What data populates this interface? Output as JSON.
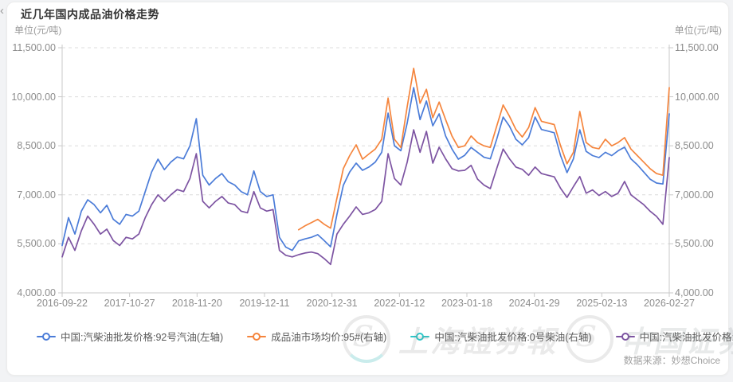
{
  "page": {
    "title": "近几年国内成品油价格走势",
    "unit_left": "单位(元/吨)",
    "unit_right": "单位(元/吨)",
    "data_source": "数据来源：妙想Choice",
    "nav_arrow": "‹"
  },
  "watermark": {
    "brand1": "上海證券報",
    "brand2": "中国证券网"
  },
  "legend": {
    "items": [
      {
        "label": "中国:汽柴油批发价格:92号汽油(左轴)",
        "color": "#4b7cd8"
      },
      {
        "label": "成品油市场均价:95#(右轴)",
        "color": "#f5853d"
      },
      {
        "label": "中国:汽柴油批发价格:0号柴油(右轴)",
        "color": "#2ec7c9"
      },
      {
        "label": "中国:汽柴油批发价格:0号柴油(左轴)",
        "color": "#7d54a2"
      }
    ]
  },
  "chart_data": {
    "type": "line",
    "title": "近几年国内成品油价格走势",
    "unit": "元/吨",
    "grid": "dashed-horizontal",
    "legend_position": "bottom",
    "y_axis": {
      "min": 4000,
      "max": 11500,
      "tick_labels_top_to_bottom": [
        "11,500.00",
        "10,000.00",
        "8,500.00",
        "7,000.00",
        "5,500.00",
        "4,000.00"
      ],
      "sides": [
        "left",
        "right"
      ]
    },
    "x_axis": {
      "tick_labels": [
        "2016-09-22",
        "2017-10-27",
        "2018-11-20",
        "2019-12-11",
        "2020-12-31",
        "2022-01-12",
        "2023-01-18",
        "2024-01-29",
        "2025-02-13",
        "2026-02-27"
      ]
    },
    "series": [
      {
        "name": "中国:汽柴油批发价格:92号汽油(左轴)",
        "axis": "left",
        "color": "#4b7cd8",
        "values": [
          5450,
          6300,
          5800,
          6500,
          6850,
          6700,
          6450,
          6680,
          6250,
          6100,
          6400,
          6350,
          6500,
          7100,
          7700,
          8090,
          7770,
          8000,
          8160,
          8100,
          8500,
          9330,
          7600,
          7300,
          7500,
          7650,
          7400,
          7300,
          7100,
          7000,
          7730,
          7100,
          6950,
          7000,
          5700,
          5400,
          5300,
          5590,
          5650,
          5700,
          5780,
          5600,
          5410,
          6400,
          7290,
          7700,
          7970,
          7750,
          7850,
          8000,
          8300,
          9500,
          8500,
          8350,
          9200,
          10280,
          9300,
          9870,
          9110,
          9480,
          8800,
          8400,
          8090,
          8210,
          8450,
          8300,
          8150,
          8100,
          8700,
          9380,
          9100,
          8700,
          8530,
          8750,
          9380,
          9000,
          8950,
          8900,
          8200,
          7680,
          8100,
          8990,
          8330,
          8200,
          8140,
          8300,
          8200,
          8350,
          8455,
          8100,
          7920,
          7700,
          7480,
          7360,
          7330,
          9480
        ]
      },
      {
        "name": "成品油市场均价:95#(右轴)",
        "axis": "right",
        "color": "#f5853d",
        "values": [
          null,
          null,
          null,
          null,
          null,
          null,
          null,
          null,
          null,
          null,
          null,
          null,
          null,
          null,
          null,
          null,
          null,
          null,
          null,
          null,
          null,
          null,
          null,
          null,
          null,
          null,
          null,
          null,
          null,
          null,
          null,
          null,
          null,
          null,
          null,
          null,
          null,
          5930,
          6050,
          6150,
          6250,
          6100,
          5980,
          6900,
          7800,
          8200,
          8530,
          8090,
          8250,
          8400,
          8700,
          9960,
          8700,
          8450,
          9700,
          10870,
          9800,
          10230,
          9360,
          9840,
          9300,
          8800,
          8450,
          8500,
          8800,
          8600,
          8500,
          8450,
          9100,
          9750,
          9400,
          9000,
          8770,
          9060,
          9670,
          9250,
          9200,
          9150,
          8500,
          7950,
          8300,
          9550,
          8600,
          8450,
          8410,
          8700,
          8500,
          8600,
          8750,
          8400,
          8200,
          8000,
          7800,
          7650,
          7600,
          10280
        ]
      },
      {
        "name": "中国:汽柴油批发价格:0号柴油(右轴)",
        "axis": "right",
        "color": "#2ec7c9",
        "note_visible_in_pixels": "line not visible (covered)",
        "values": []
      },
      {
        "name": "中国:汽柴油批发价格:0号柴油(左轴)",
        "axis": "left",
        "color": "#7d54a2",
        "values": [
          5100,
          5700,
          5300,
          5900,
          6350,
          6100,
          5800,
          5950,
          5600,
          5450,
          5700,
          5650,
          5800,
          6300,
          6700,
          7000,
          6800,
          7000,
          7160,
          7100,
          7500,
          8260,
          6800,
          6600,
          6800,
          6950,
          6750,
          6700,
          6500,
          6450,
          7100,
          6600,
          6500,
          6550,
          5300,
          5150,
          5100,
          5170,
          5220,
          5250,
          5200,
          5050,
          4870,
          5800,
          6100,
          6350,
          6630,
          6400,
          6450,
          6550,
          6800,
          8260,
          7500,
          7300,
          8000,
          8990,
          8300,
          8940,
          7970,
          8455,
          8100,
          7800,
          7730,
          7750,
          7900,
          7480,
          7300,
          7190,
          7800,
          8400,
          8100,
          7850,
          7780,
          7600,
          7850,
          7650,
          7600,
          7550,
          7200,
          6920,
          7250,
          7560,
          7050,
          7150,
          6980,
          7100,
          6950,
          7050,
          7410,
          7000,
          6850,
          6700,
          6500,
          6340,
          6100,
          8140
        ]
      }
    ]
  }
}
